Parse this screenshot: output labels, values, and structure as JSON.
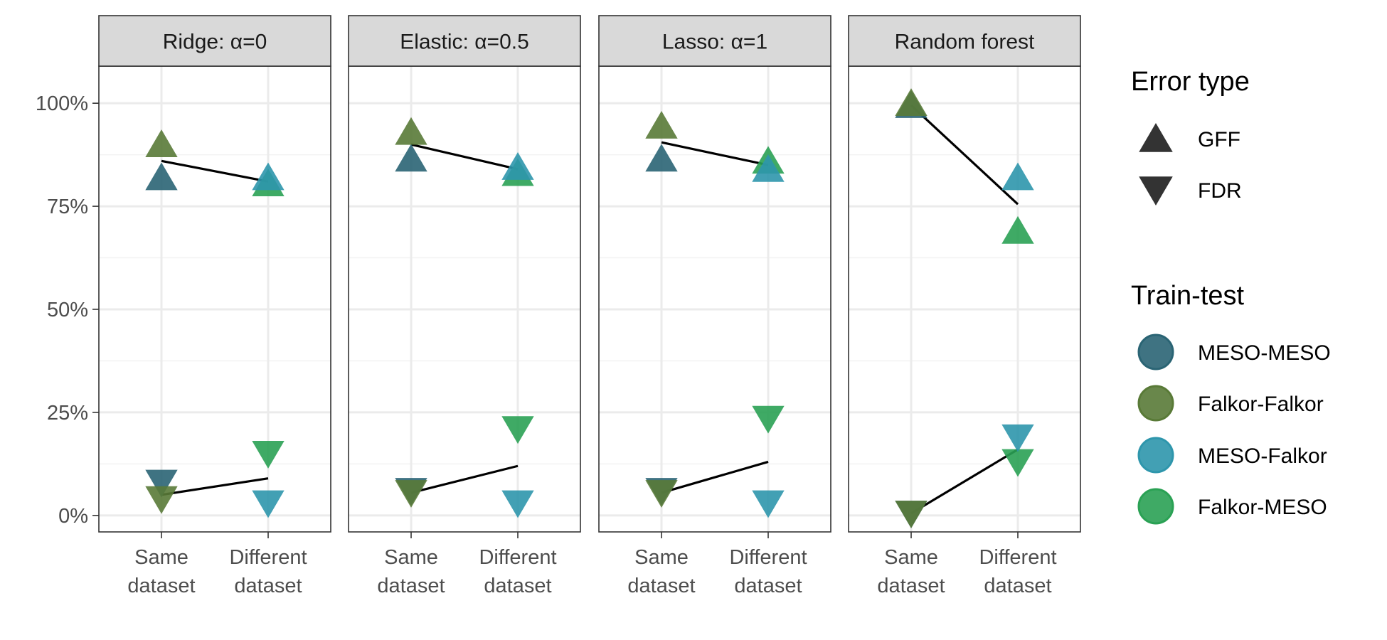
{
  "chart_data": {
    "type": "scatter",
    "facets": [
      "Ridge: α=0",
      "Elastic: α=0.5",
      "Lasso: α=1",
      "Random forest"
    ],
    "x_categories": [
      "Same\ndataset",
      "Different\ndataset"
    ],
    "y_ticks": [
      0,
      25,
      50,
      75,
      100
    ],
    "y_tick_labels": [
      "0%",
      "25%",
      "50%",
      "75%",
      "100%"
    ],
    "ylim": [
      -4,
      109
    ],
    "grid": true,
    "legend_position": "right",
    "error_type_legend": {
      "title": "Error type",
      "items": [
        {
          "label": "GFF",
          "shape": "triangle-up"
        },
        {
          "label": "FDR",
          "shape": "triangle-down"
        }
      ]
    },
    "train_test_legend": {
      "title": "Train-test",
      "items": [
        {
          "label": "MESO-MESO",
          "color": "#2a6474"
        },
        {
          "label": "Falkor-Falkor",
          "color": "#597a37"
        },
        {
          "label": "MESO-Falkor",
          "color": "#2e96ac"
        },
        {
          "label": "Falkor-MESO",
          "color": "#2aa154"
        }
      ]
    },
    "points": [
      {
        "facet": 0,
        "x": 0,
        "y": 82,
        "series": 0,
        "error": 0
      },
      {
        "facet": 0,
        "x": 0,
        "y": 90,
        "series": 1,
        "error": 0
      },
      {
        "facet": 0,
        "x": 1,
        "y": 80.5,
        "series": 3,
        "error": 0
      },
      {
        "facet": 0,
        "x": 1,
        "y": 82,
        "series": 2,
        "error": 0
      },
      {
        "facet": 0,
        "x": 0,
        "y": 8,
        "series": 0,
        "error": 1
      },
      {
        "facet": 0,
        "x": 0,
        "y": 4,
        "series": 1,
        "error": 1
      },
      {
        "facet": 0,
        "x": 1,
        "y": 15,
        "series": 3,
        "error": 1
      },
      {
        "facet": 0,
        "x": 1,
        "y": 3,
        "series": 2,
        "error": 1
      },
      {
        "facet": 1,
        "x": 0,
        "y": 86.5,
        "series": 0,
        "error": 0
      },
      {
        "facet": 1,
        "x": 0,
        "y": 93,
        "series": 1,
        "error": 0
      },
      {
        "facet": 1,
        "x": 1,
        "y": 83,
        "series": 3,
        "error": 0
      },
      {
        "facet": 1,
        "x": 1,
        "y": 84.5,
        "series": 2,
        "error": 0
      },
      {
        "facet": 1,
        "x": 0,
        "y": 6,
        "series": 0,
        "error": 1
      },
      {
        "facet": 1,
        "x": 0,
        "y": 5.5,
        "series": 1,
        "error": 1
      },
      {
        "facet": 1,
        "x": 1,
        "y": 21,
        "series": 3,
        "error": 1
      },
      {
        "facet": 1,
        "x": 1,
        "y": 3,
        "series": 2,
        "error": 1
      },
      {
        "facet": 2,
        "x": 0,
        "y": 86.5,
        "series": 0,
        "error": 0
      },
      {
        "facet": 2,
        "x": 0,
        "y": 94.5,
        "series": 1,
        "error": 0
      },
      {
        "facet": 2,
        "x": 1,
        "y": 86,
        "series": 3,
        "error": 0
      },
      {
        "facet": 2,
        "x": 1,
        "y": 84,
        "series": 2,
        "error": 0
      },
      {
        "facet": 2,
        "x": 0,
        "y": 6,
        "series": 0,
        "error": 1
      },
      {
        "facet": 2,
        "x": 0,
        "y": 5.5,
        "series": 1,
        "error": 1
      },
      {
        "facet": 2,
        "x": 1,
        "y": 23.5,
        "series": 3,
        "error": 1
      },
      {
        "facet": 2,
        "x": 1,
        "y": 3,
        "series": 2,
        "error": 1
      },
      {
        "facet": 3,
        "x": 0,
        "y": 99.5,
        "series": 0,
        "error": 0
      },
      {
        "facet": 3,
        "x": 0,
        "y": 100,
        "series": 1,
        "error": 0
      },
      {
        "facet": 3,
        "x": 1,
        "y": 69,
        "series": 3,
        "error": 0
      },
      {
        "facet": 3,
        "x": 1,
        "y": 82,
        "series": 2,
        "error": 0
      },
      {
        "facet": 3,
        "x": 0,
        "y": 0.5,
        "series": 0,
        "error": 1
      },
      {
        "facet": 3,
        "x": 0,
        "y": 0.5,
        "series": 1,
        "error": 1
      },
      {
        "facet": 3,
        "x": 1,
        "y": 13,
        "series": 3,
        "error": 1
      },
      {
        "facet": 3,
        "x": 1,
        "y": 19,
        "series": 2,
        "error": 1
      }
    ],
    "mean_lines": [
      {
        "facet": 0,
        "error": 0,
        "y_same": 86,
        "y_diff": 81
      },
      {
        "facet": 0,
        "error": 1,
        "y_same": 5,
        "y_diff": 9
      },
      {
        "facet": 1,
        "error": 0,
        "y_same": 90,
        "y_diff": 84
      },
      {
        "facet": 1,
        "error": 1,
        "y_same": 5.5,
        "y_diff": 12
      },
      {
        "facet": 2,
        "error": 0,
        "y_same": 90.5,
        "y_diff": 85
      },
      {
        "facet": 2,
        "error": 1,
        "y_same": 5.5,
        "y_diff": 13
      },
      {
        "facet": 3,
        "error": 0,
        "y_same": 99.5,
        "y_diff": 75.5
      },
      {
        "facet": 3,
        "error": 1,
        "y_same": 0.5,
        "y_diff": 16
      }
    ]
  }
}
